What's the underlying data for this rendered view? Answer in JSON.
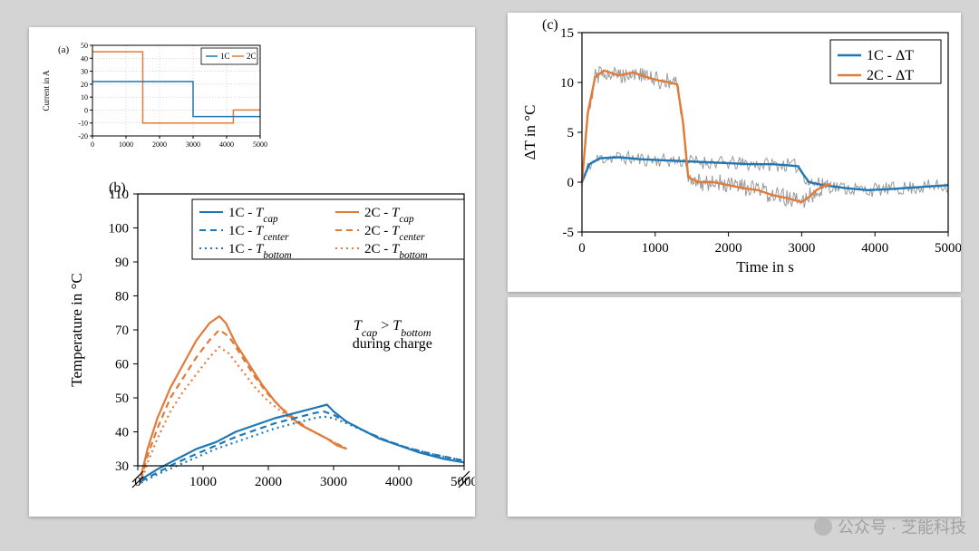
{
  "colors": {
    "bg": "#d4d4d4",
    "panel": "#ffffff",
    "axis": "#000000",
    "text": "#000000",
    "grid_a": "#bfbfbf",
    "c1": "#1f77b4",
    "c2": "#e07b3a",
    "noise": "#808080",
    "watermark": "#9c9c9c"
  },
  "panelA": {
    "label": "(a)",
    "ylabel": "Current in A",
    "xlim": [
      0,
      5000
    ],
    "xtick_step": 1000,
    "ylim": [
      -20,
      50
    ],
    "yticks": [
      -20,
      -10,
      0,
      10,
      20,
      30,
      40,
      50
    ],
    "grid_color": "#bfbfbf",
    "legend": [
      "1C",
      "2C"
    ],
    "legend_colors": [
      "#1f77b4",
      "#e07b3a"
    ],
    "series_2C": [
      [
        0,
        45
      ],
      [
        1500,
        45
      ],
      [
        1500,
        -10
      ],
      [
        4200,
        -10
      ],
      [
        4200,
        0
      ],
      [
        5000,
        0
      ]
    ],
    "series_1C": [
      [
        0,
        22
      ],
      [
        3000,
        22
      ],
      [
        3000,
        -5
      ],
      [
        5000,
        -5
      ]
    ],
    "series_2C_color": "#e07b3a",
    "series_1C_color": "#1f77b4",
    "line_width": 1.5,
    "label_fontsize": 9,
    "tick_fontsize": 8,
    "legend_fontsize": 9
  },
  "panelB": {
    "label": "(b)",
    "ylabel": "Temperature in °C",
    "xlim": [
      0,
      5000
    ],
    "xtick_step": 1000,
    "ylim": [
      30,
      110
    ],
    "ytick_step": 10,
    "legend_rows": [
      {
        "left": {
          "text": "1C - T_cap",
          "style": "solid",
          "color": "#1f77b4"
        },
        "right": {
          "text": "2C - T_cap",
          "style": "solid",
          "color": "#e07b3a"
        }
      },
      {
        "left": {
          "text": "1C - T_center",
          "style": "dash",
          "color": "#1f77b4"
        },
        "right": {
          "text": "2C - T_center",
          "style": "dash",
          "color": "#e07b3a"
        }
      },
      {
        "left": {
          "text": "1C - T_bottom",
          "style": "dot",
          "color": "#1f77b4"
        },
        "right": {
          "text": "2C - T_bottom",
          "style": "dot",
          "color": "#e07b3a"
        }
      }
    ],
    "annotation_lines": [
      "T_cap > T_bottom",
      "during charge"
    ],
    "label_fontsize": 17,
    "tick_fontsize": 15,
    "legend_fontsize": 15,
    "line_width": 2.2,
    "series": {
      "2C_cap": {
        "color": "#e07b3a",
        "style": "solid",
        "pts": [
          [
            50,
            27
          ],
          [
            150,
            35
          ],
          [
            300,
            44
          ],
          [
            500,
            53
          ],
          [
            700,
            60
          ],
          [
            900,
            67
          ],
          [
            1100,
            72
          ],
          [
            1250,
            74
          ],
          [
            1350,
            72
          ],
          [
            1500,
            66
          ],
          [
            1700,
            60
          ],
          [
            1900,
            54
          ],
          [
            2100,
            49
          ],
          [
            2300,
            45
          ],
          [
            2500,
            42
          ],
          [
            2700,
            40
          ],
          [
            2900,
            38
          ],
          [
            3050,
            36
          ],
          [
            3200,
            35
          ]
        ]
      },
      "2C_center": {
        "color": "#e07b3a",
        "style": "dash",
        "pts": [
          [
            50,
            26
          ],
          [
            150,
            33
          ],
          [
            300,
            41
          ],
          [
            500,
            50
          ],
          [
            700,
            56
          ],
          [
            900,
            62
          ],
          [
            1100,
            67
          ],
          [
            1250,
            70
          ],
          [
            1400,
            68
          ],
          [
            1600,
            62
          ],
          [
            1800,
            56
          ],
          [
            2000,
            51
          ],
          [
            2200,
            47
          ],
          [
            2400,
            44
          ],
          [
            2600,
            41
          ],
          [
            2800,
            39
          ],
          [
            3000,
            37
          ],
          [
            3200,
            35
          ]
        ]
      },
      "2C_bottom": {
        "color": "#e07b3a",
        "style": "dot",
        "pts": [
          [
            50,
            25
          ],
          [
            150,
            31
          ],
          [
            300,
            38
          ],
          [
            500,
            46
          ],
          [
            700,
            52
          ],
          [
            900,
            57
          ],
          [
            1100,
            62
          ],
          [
            1250,
            65
          ],
          [
            1400,
            63
          ],
          [
            1600,
            58
          ],
          [
            1800,
            53
          ],
          [
            2000,
            49
          ],
          [
            2200,
            46
          ],
          [
            2400,
            43
          ],
          [
            2600,
            41
          ],
          [
            2800,
            39
          ],
          [
            3000,
            37
          ],
          [
            3200,
            35
          ]
        ]
      },
      "1C_cap": {
        "color": "#1f77b4",
        "style": "solid",
        "pts": [
          [
            50,
            26
          ],
          [
            300,
            29
          ],
          [
            600,
            32
          ],
          [
            900,
            35
          ],
          [
            1200,
            37
          ],
          [
            1500,
            40
          ],
          [
            1800,
            42
          ],
          [
            2100,
            44
          ],
          [
            2400,
            45.5
          ],
          [
            2700,
            47
          ],
          [
            2900,
            48
          ],
          [
            3000,
            46
          ],
          [
            3200,
            43
          ],
          [
            3400,
            41
          ],
          [
            3700,
            38
          ],
          [
            4000,
            36
          ],
          [
            4300,
            34
          ],
          [
            4700,
            32
          ],
          [
            5000,
            31
          ]
        ]
      },
      "1C_center": {
        "color": "#1f77b4",
        "style": "dash",
        "pts": [
          [
            50,
            25.5
          ],
          [
            300,
            28
          ],
          [
            600,
            31
          ],
          [
            900,
            33.5
          ],
          [
            1200,
            36
          ],
          [
            1500,
            38.5
          ],
          [
            1800,
            40.5
          ],
          [
            2100,
            42.5
          ],
          [
            2400,
            44
          ],
          [
            2700,
            45.5
          ],
          [
            2850,
            46
          ],
          [
            3000,
            45
          ],
          [
            3200,
            43
          ],
          [
            3500,
            40
          ],
          [
            3800,
            37.5
          ],
          [
            4100,
            35.5
          ],
          [
            4500,
            33.5
          ],
          [
            5000,
            31.5
          ]
        ]
      },
      "1C_bottom": {
        "color": "#1f77b4",
        "style": "dot",
        "pts": [
          [
            50,
            25
          ],
          [
            300,
            27.5
          ],
          [
            600,
            30
          ],
          [
            900,
            32.5
          ],
          [
            1200,
            35
          ],
          [
            1500,
            37
          ],
          [
            1800,
            39
          ],
          [
            2100,
            41
          ],
          [
            2400,
            42.5
          ],
          [
            2700,
            44
          ],
          [
            2850,
            44.5
          ],
          [
            3000,
            44
          ],
          [
            3200,
            42.5
          ],
          [
            3500,
            40
          ],
          [
            3800,
            37.5
          ],
          [
            4100,
            35.5
          ],
          [
            4500,
            33.5
          ],
          [
            5000,
            31.5
          ]
        ]
      }
    }
  },
  "panelC": {
    "label": "(c)",
    "ylabel": "ΔT in °C",
    "xlabel": "Time in s",
    "xlim": [
      0,
      5000
    ],
    "xtick_step": 1000,
    "ylim": [
      -5,
      15
    ],
    "ytick_step": 5,
    "legend": [
      "1C - ΔT",
      "2C - ΔT"
    ],
    "legend_colors": [
      "#1f77b4",
      "#e07b3a"
    ],
    "noise_color": "#808080",
    "noise_amp_1C": 0.7,
    "noise_amp_2C": 0.9,
    "label_fontsize": 17,
    "tick_fontsize": 15,
    "legend_fontsize": 16,
    "line_width": 2.4,
    "series": {
      "2C": [
        [
          0,
          0
        ],
        [
          80,
          7
        ],
        [
          180,
          10.5
        ],
        [
          300,
          11.2
        ],
        [
          500,
          10.7
        ],
        [
          700,
          11
        ],
        [
          900,
          10.5
        ],
        [
          1050,
          10.2
        ],
        [
          1200,
          10
        ],
        [
          1300,
          9.8
        ],
        [
          1380,
          6
        ],
        [
          1450,
          0.5
        ],
        [
          1600,
          0
        ],
        [
          1800,
          0
        ],
        [
          2000,
          -0.3
        ],
        [
          2200,
          -0.6
        ],
        [
          2400,
          -0.8
        ],
        [
          2600,
          -1.3
        ],
        [
          2800,
          -1.6
        ],
        [
          3000,
          -2.0
        ],
        [
          3100,
          -1.5
        ],
        [
          3200,
          -0.8
        ],
        [
          3300,
          -0.4
        ],
        [
          3400,
          -0.2
        ]
      ],
      "1C": [
        [
          0,
          0
        ],
        [
          100,
          1.8
        ],
        [
          250,
          2.4
        ],
        [
          500,
          2.5
        ],
        [
          800,
          2.3
        ],
        [
          1100,
          2.2
        ],
        [
          1400,
          2.1
        ],
        [
          1700,
          2.0
        ],
        [
          2000,
          1.9
        ],
        [
          2300,
          1.8
        ],
        [
          2600,
          1.8
        ],
        [
          2800,
          1.7
        ],
        [
          2950,
          1.6
        ],
        [
          3020,
          0.8
        ],
        [
          3100,
          0
        ],
        [
          3300,
          -0.3
        ],
        [
          3600,
          -0.6
        ],
        [
          3900,
          -0.8
        ],
        [
          4200,
          -0.7
        ],
        [
          4600,
          -0.5
        ],
        [
          5000,
          -0.3
        ]
      ]
    }
  },
  "watermark": {
    "text": "公众号 · 芝能科技",
    "color": "#9c9c9c"
  }
}
